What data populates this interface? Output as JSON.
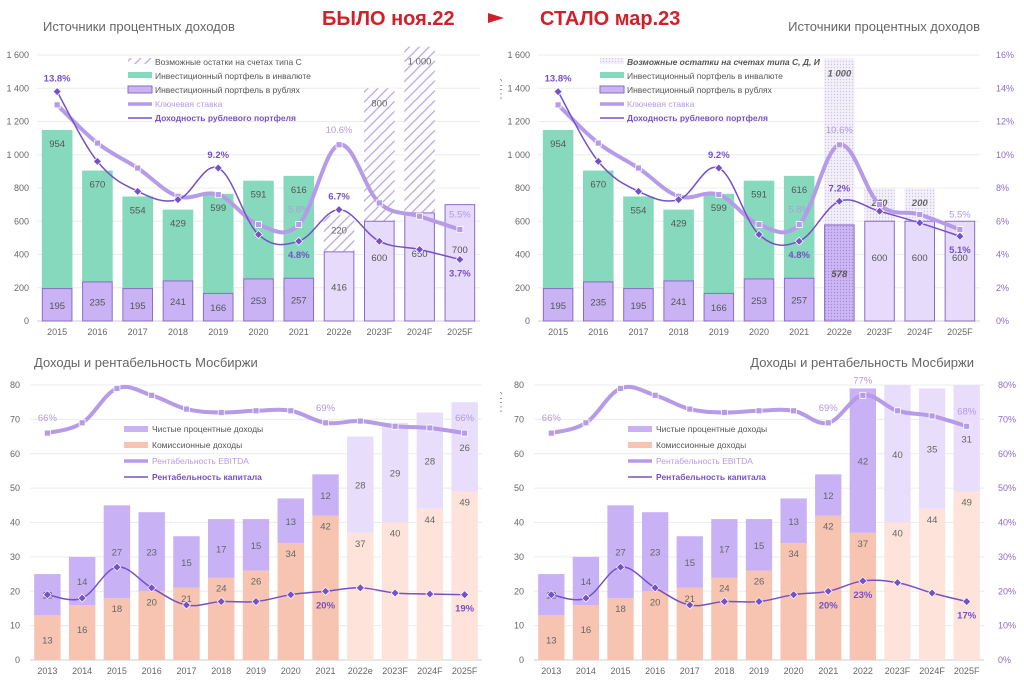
{
  "header": {
    "before_label": "БЫЛО ноя.22",
    "after_label": "СТАЛО мар.23",
    "accent_color": "#d0202a"
  },
  "colors": {
    "green": "#86d9bd",
    "purple_bar": "#cab3f5",
    "purple_bar_light": "#e6dbfb",
    "purple_border": "#8a6cc6",
    "hatch": "#b9a6e6",
    "key_rate_line": "#b59be8",
    "yield_line": "#7650c8",
    "commission": "#f7c4b1",
    "commission_light": "#fde3d9",
    "nii": "#c8b1f5",
    "nii_light": "#e8ddfb",
    "ebitda_line": "#b59be8",
    "roe_line": "#7650c8"
  },
  "chart_data": [
    {
      "id": "interest-before",
      "type": "bar",
      "title": "Источники процентных доходов",
      "xlabel": "",
      "ylabel": "",
      "ylim": [
        0,
        1600
      ],
      "yticks": [
        "0",
        "200",
        "400",
        "600",
        "800",
        "1 000",
        "1 200",
        "1 400",
        "1 600"
      ],
      "y2lim": [
        0,
        16
      ],
      "categories": [
        "2015",
        "2016",
        "2017",
        "2018",
        "2019",
        "2020",
        "2021",
        "2022e",
        "2023F",
        "2024F",
        "2025F"
      ],
      "legend": [
        "Возможные остатки на счетах типа С",
        "Инвестиционный портфель в инвалюте",
        "Инвестиционный портфель в рублях",
        "Ключевая ставка",
        "Доходность рублевого портфеля"
      ],
      "series": [
        {
          "name": "Инвестиционный портфель в рублях",
          "values": [
            195,
            235,
            195,
            241,
            166,
            253,
            257,
            416,
            600,
            650,
            700
          ],
          "labels": [
            "195",
            "235",
            "195",
            "241",
            "166",
            "253",
            "257",
            "416",
            "600",
            "650",
            "700"
          ]
        },
        {
          "name": "Инвестиционный портфель в инвалюте",
          "values": [
            954,
            670,
            554,
            429,
            599,
            591,
            616,
            null,
            null,
            null,
            null
          ],
          "labels": [
            "954",
            "670",
            "554",
            "429",
            "599",
            "591",
            "616",
            "",
            "",
            "",
            ""
          ]
        },
        {
          "name": "Возможные остатки на счетах типа С",
          "values": [
            null,
            null,
            null,
            null,
            null,
            null,
            null,
            220,
            800,
            1000,
            null
          ],
          "labels": [
            "",
            "",
            "",
            "",
            "",
            "",
            "",
            "220",
            "800",
            "1 000",
            ""
          ]
        },
        {
          "name": "Ключевая ставка",
          "axis": "right",
          "values": [
            13.0,
            10.7,
            9.2,
            7.5,
            7.6,
            5.8,
            5.8,
            10.6,
            7.1,
            6.3,
            5.5
          ],
          "labels": {
            "7": "10.6%",
            "10": "5.5%",
            "6": "5.8%"
          }
        },
        {
          "name": "Доходность рублевого портфеля",
          "axis": "right",
          "values": [
            13.8,
            9.6,
            7.8,
            7.3,
            9.2,
            5.2,
            4.8,
            6.7,
            4.8,
            4.3,
            3.7
          ],
          "labels": {
            "0": "13.8%",
            "4": "9.2%",
            "6": "4.8%",
            "7": "6.7%",
            "10": "3.7%"
          }
        }
      ]
    },
    {
      "id": "interest-after",
      "type": "bar",
      "title": "Источники процентных доходов",
      "xlabel": "",
      "ylabel": "млрд руб.",
      "ylim": [
        0,
        1600
      ],
      "yticks": [
        "0",
        "200",
        "400",
        "600",
        "800",
        "1 000",
        "1 200",
        "1 400",
        "1 600"
      ],
      "y2lim": [
        0,
        16
      ],
      "y2ticks": [
        "0%",
        "2%",
        "4%",
        "6%",
        "8%",
        "10%",
        "12%",
        "14%",
        "16%"
      ],
      "categories": [
        "2015",
        "2016",
        "2017",
        "2018",
        "2019",
        "2020",
        "2021",
        "2022e",
        "2023F",
        "2024F",
        "2025F"
      ],
      "legend": [
        "Возможные остатки на счетах типа С, Д, И",
        "Инвестиционный портфель в инвалюте",
        "Инвестиционный портфель в рублях",
        "Ключевая ставка",
        "Доходность рублевого портфеля"
      ],
      "series": [
        {
          "name": "Инвестиционный портфель в рублях",
          "values": [
            195,
            235,
            195,
            241,
            166,
            253,
            257,
            578,
            600,
            600,
            600
          ],
          "labels": [
            "195",
            "235",
            "195",
            "241",
            "166",
            "253",
            "257",
            "578",
            "600",
            "600",
            "600"
          ]
        },
        {
          "name": "Инвестиционный портфель в инвалюте",
          "values": [
            954,
            670,
            554,
            429,
            599,
            591,
            616,
            null,
            null,
            null,
            null
          ],
          "labels": [
            "954",
            "670",
            "554",
            "429",
            "599",
            "591",
            "616",
            "",
            "",
            "",
            ""
          ]
        },
        {
          "name": "Возможные остатки на счетах типа С, Д, И",
          "values": [
            null,
            null,
            null,
            null,
            null,
            null,
            null,
            1000,
            200,
            200,
            null
          ],
          "labels": [
            "",
            "",
            "",
            "",
            "",
            "",
            "",
            "1 000",
            "200",
            "200",
            ""
          ]
        },
        {
          "name": "Ключевая ставка",
          "axis": "right",
          "values": [
            13.0,
            10.7,
            9.2,
            7.5,
            7.6,
            5.8,
            5.8,
            10.6,
            7.0,
            6.4,
            5.5
          ],
          "labels": {
            "7": "10.6%",
            "10": "5.5%",
            "6": "5.8%"
          }
        },
        {
          "name": "Доходность рублевого портфеля",
          "axis": "right",
          "values": [
            13.8,
            9.6,
            7.8,
            7.3,
            9.2,
            5.2,
            4.8,
            7.2,
            6.6,
            5.9,
            5.1
          ],
          "labels": {
            "0": "13.8%",
            "4": "9.2%",
            "6": "4.8%",
            "7": "7.2%",
            "10": "5.1%"
          }
        }
      ]
    },
    {
      "id": "revenue-before",
      "type": "bar",
      "title": "Доходы и рентабельность Мосбиржи",
      "xlabel": "",
      "ylabel": "",
      "ylim": [
        0,
        80
      ],
      "yticks": [
        "0",
        "10",
        "20",
        "30",
        "40",
        "50",
        "60",
        "70",
        "80"
      ],
      "y2lim": [
        0,
        80
      ],
      "categories": [
        "2013",
        "2014",
        "2015",
        "2016",
        "2017",
        "2018",
        "2019",
        "2020",
        "2021",
        "2022e",
        "2023F",
        "2024F",
        "2025F"
      ],
      "forecast_from": 9,
      "legend": [
        "Чистые процентные доходы",
        "Комиссионные доходы",
        "Рентабельность EBITDA",
        "Рентабельность капитала"
      ],
      "series": [
        {
          "name": "Комиссионные доходы",
          "values": [
            13,
            16,
            18,
            20,
            21,
            24,
            26,
            34,
            42,
            37,
            40,
            44,
            49
          ]
        },
        {
          "name": "Чистые процентные доходы",
          "values": [
            12,
            14,
            27,
            23,
            15,
            17,
            15,
            13,
            12,
            28,
            29,
            28,
            26
          ]
        },
        {
          "name": "Рентабельность EBITDA",
          "axis": "right",
          "values": [
            66,
            69,
            79,
            77,
            73,
            72,
            72.5,
            72.5,
            69,
            69.5,
            68,
            67.5,
            66
          ],
          "labels": {
            "0": "66%",
            "8": "69%",
            "12": "66%"
          }
        },
        {
          "name": "Рентабельность капитала",
          "axis": "right",
          "values": [
            19,
            18,
            27,
            21,
            16,
            17,
            17,
            19,
            20,
            21,
            19.5,
            19.2,
            19
          ],
          "labels": {
            "8": "20%",
            "12": "19%"
          }
        }
      ]
    },
    {
      "id": "revenue-after",
      "type": "bar",
      "title": "Доходы и рентабельность Мосбиржи",
      "xlabel": "",
      "ylabel": "млрд руб.",
      "ylim": [
        0,
        80
      ],
      "yticks": [
        "0",
        "10",
        "20",
        "30",
        "40",
        "50",
        "60",
        "70",
        "80"
      ],
      "y2lim": [
        0,
        80
      ],
      "y2ticks": [
        "0%",
        "10%",
        "20%",
        "30%",
        "40%",
        "50%",
        "60%",
        "70%",
        "80%"
      ],
      "categories": [
        "2013",
        "2014",
        "2015",
        "2016",
        "2017",
        "2018",
        "2019",
        "2020",
        "2021",
        "2022",
        "2023F",
        "2024F",
        "2025F"
      ],
      "forecast_from": 10,
      "legend": [
        "Чистые процентные доходы",
        "Комиссионные доходы",
        "Рентабельность EBITDA",
        "Рентабельность капитала"
      ],
      "series": [
        {
          "name": "Комиссионные доходы",
          "values": [
            13,
            16,
            18,
            20,
            21,
            24,
            26,
            34,
            42,
            37,
            40,
            44,
            49
          ]
        },
        {
          "name": "Чистые процентные доходы",
          "values": [
            12,
            14,
            27,
            23,
            15,
            17,
            15,
            13,
            12,
            42,
            40,
            35,
            31
          ]
        },
        {
          "name": "Рентабельность EBITDA",
          "axis": "right",
          "values": [
            66,
            69,
            79,
            77,
            73,
            72,
            72.5,
            72.5,
            69,
            77,
            72.5,
            71,
            68
          ],
          "labels": {
            "0": "66%",
            "8": "69%",
            "9": "77%",
            "12": "68%"
          }
        },
        {
          "name": "Рентабельность капитала",
          "axis": "right",
          "values": [
            19,
            18,
            27,
            21,
            16,
            17,
            17,
            19,
            20,
            23,
            22.5,
            19.5,
            17
          ],
          "labels": {
            "8": "20%",
            "9": "23%",
            "12": "17%"
          }
        }
      ]
    }
  ]
}
